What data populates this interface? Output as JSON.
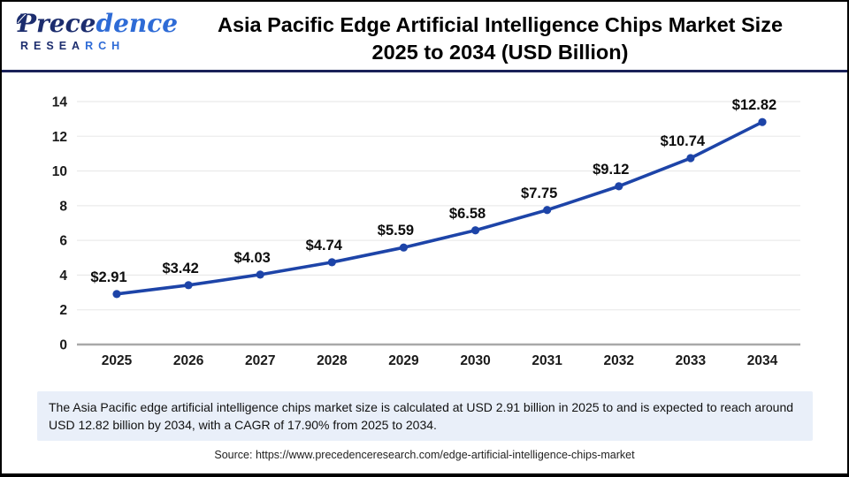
{
  "header": {
    "logo": {
      "brand_primary": "Prece",
      "brand_secondary": "dence",
      "research_primary": "RESEA",
      "research_secondary": "RCH"
    },
    "title_line1": "Asia Pacific Edge Artificial Intelligence Chips Market Size",
    "title_line2": "2025 to 2034 (USD Billion)"
  },
  "chart_data": {
    "type": "line",
    "title": "Asia Pacific Edge Artificial Intelligence Chips Market Size 2025 to 2034 (USD Billion)",
    "categories": [
      "2025",
      "2026",
      "2027",
      "2028",
      "2029",
      "2030",
      "2031",
      "2032",
      "2033",
      "2034"
    ],
    "values": [
      2.91,
      3.42,
      4.03,
      4.74,
      5.59,
      6.58,
      7.75,
      9.12,
      10.74,
      12.82
    ],
    "labels": [
      "$2.91",
      "$3.42",
      "$4.03",
      "$4.74",
      "$5.59",
      "$6.58",
      "$7.75",
      "$9.12",
      "$10.74",
      "$12.82"
    ],
    "xlabel": "",
    "ylabel": "",
    "ylim": [
      0,
      14
    ],
    "yticks": [
      0,
      2,
      4,
      6,
      8,
      10,
      12,
      14
    ],
    "grid": true,
    "legend": "none",
    "line_color": "#1d44a8",
    "marker_color": "#1d44a8"
  },
  "footer": {
    "summary": "The Asia Pacific edge artificial intelligence chips market size is calculated at USD 2.91 billion in 2025 to and is expected to reach around USD 12.82 billion by 2034, with a CAGR of 17.90% from 2025 to 2034.",
    "source": "Source: https://www.precedenceresearch.com/edge-artificial-intelligence-chips-market"
  },
  "colors": {
    "line": "#1d44a8",
    "divider_navy": "#1a2158",
    "logo_navy": "#1c2d6e",
    "logo_blue": "#2e6bd6",
    "footer_box_bg": "#e9eff9",
    "gridline": "#ebebeb",
    "axis_baseline": "#a8a8a8",
    "tick_text": "#1a1a1a",
    "data_label_text": "#0d0d0d"
  }
}
